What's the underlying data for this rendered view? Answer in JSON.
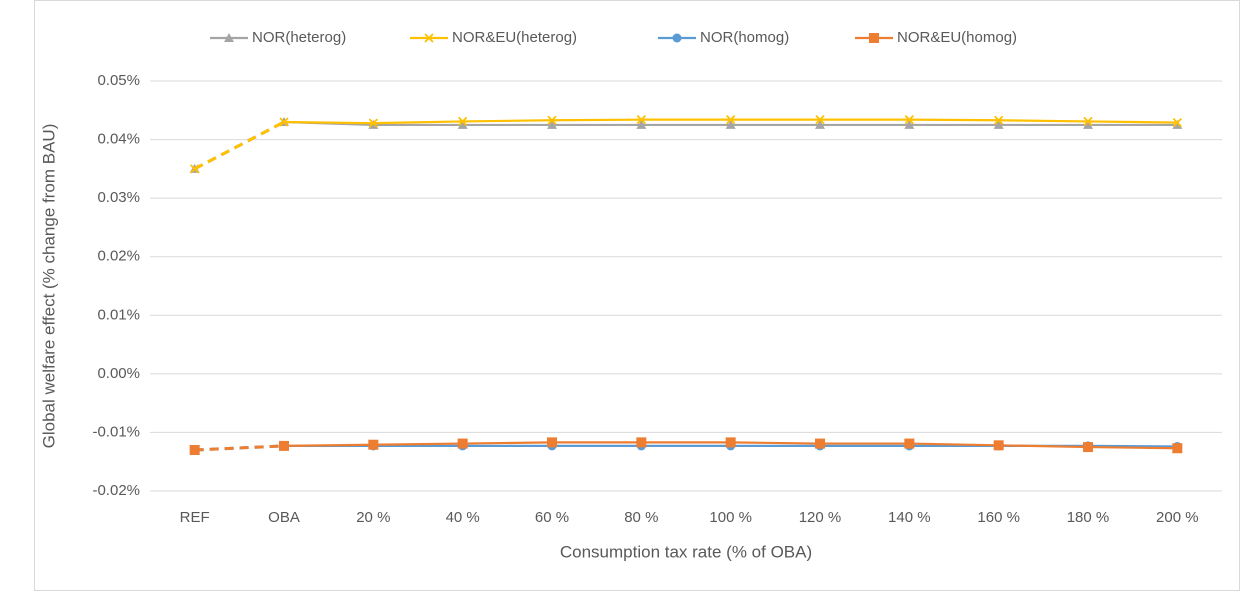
{
  "chart_data": {
    "type": "line",
    "x_label": "Consumption tax rate (% of OBA)",
    "y_label": "Global welfare effect (% change from BAU)",
    "categories": [
      "REF",
      "OBA",
      "20 %",
      "40 %",
      "60 %",
      "80 %",
      "100 %",
      "120 %",
      "140 %",
      "160 %",
      "180 %",
      "200 %"
    ],
    "series": [
      {
        "name": "NOR(heterog)",
        "color": "#a5a5a5",
        "marker": "triangle",
        "values": [
          0.035,
          0.043,
          0.0425,
          0.0425,
          0.0425,
          0.0425,
          0.0425,
          0.0425,
          0.0425,
          0.0425,
          0.0425,
          0.0425
        ]
      },
      {
        "name": "NOR&EU(heterog)",
        "color": "#ffc000",
        "marker": "x",
        "values": [
          0.035,
          0.043,
          0.0428,
          0.0431,
          0.0433,
          0.0434,
          0.0434,
          0.0434,
          0.0434,
          0.0433,
          0.0431,
          0.0429
        ]
      },
      {
        "name": "NOR(homog)",
        "color": "#5b9bd5",
        "marker": "circle",
        "values": [
          -0.013,
          -0.0123,
          -0.0123,
          -0.0123,
          -0.0123,
          -0.0123,
          -0.0123,
          -0.0123,
          -0.0123,
          -0.0123,
          -0.0123,
          -0.0124
        ]
      },
      {
        "name": "NOR&EU(homog)",
        "color": "#ed7d31",
        "marker": "square",
        "values": [
          -0.013,
          -0.0123,
          -0.0121,
          -0.0119,
          -0.0117,
          -0.0117,
          -0.0117,
          -0.0119,
          -0.0119,
          -0.0122,
          -0.0125,
          -0.0127
        ]
      }
    ],
    "ylim": [
      -0.02,
      0.05
    ],
    "yticks": [
      {
        "value": -0.02,
        "label": "-0.02%"
      },
      {
        "value": -0.01,
        "label": "-0.01%"
      },
      {
        "value": 0,
        "label": "0.00%"
      },
      {
        "value": 0.01,
        "label": "0.01%"
      },
      {
        "value": 0.02,
        "label": "0.02%"
      },
      {
        "value": 0.03,
        "label": "0.03%"
      },
      {
        "value": 0.04,
        "label": "0.04%"
      },
      {
        "value": 0.05,
        "label": "0.05%"
      }
    ],
    "grid": true,
    "legend": "top"
  }
}
